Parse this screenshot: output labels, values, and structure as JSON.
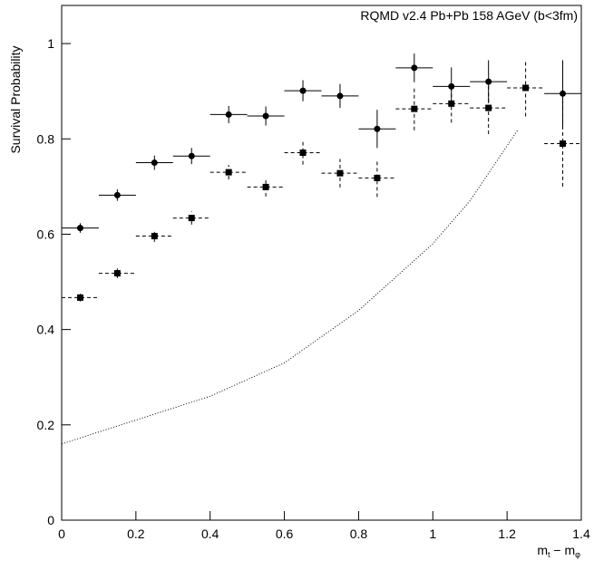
{
  "chart_data": {
    "type": "errorbar",
    "title": "RQMD v2.4 Pb+Pb 158 AGeV (b<3fm)",
    "y_label": "Survival Probability",
    "x_label": [
      "m",
      "t",
      " − m",
      "φ"
    ],
    "xlim": [
      0,
      1.4
    ],
    "ylim": [
      0,
      1.08
    ],
    "xticks": [
      0,
      0.2,
      0.4,
      0.6,
      0.8,
      1,
      1.2,
      1.4
    ],
    "yticks": [
      0,
      0.2,
      0.4,
      0.6,
      0.8,
      1
    ],
    "series": [
      {
        "marker": "circle",
        "line": "solid",
        "color": "#000000",
        "xerr": 0.05,
        "x": [
          0.05,
          0.15,
          0.25,
          0.35,
          0.45,
          0.55,
          0.65,
          0.75,
          0.85,
          0.95,
          1.05,
          1.15,
          1.25,
          1.35
        ],
        "values": [
          0.613,
          0.682,
          0.75,
          0.764,
          0.851,
          0.848,
          0.901,
          0.89,
          0.821,
          0.949,
          0.91,
          0.92,
          null,
          0.895
        ],
        "yerr": [
          0.01,
          0.012,
          0.015,
          0.017,
          0.018,
          0.02,
          0.022,
          0.025,
          0.04,
          0.03,
          0.04,
          0.045,
          null,
          0.07
        ]
      },
      {
        "marker": "square",
        "line": "dashed",
        "color": "#000000",
        "xerr": 0.05,
        "x": [
          0.05,
          0.15,
          0.25,
          0.35,
          0.45,
          0.55,
          0.65,
          0.75,
          0.85,
          0.95,
          1.05,
          1.15,
          1.25,
          1.35
        ],
        "values": [
          0.467,
          0.518,
          0.596,
          0.634,
          0.73,
          0.699,
          0.771,
          0.728,
          0.718,
          0.863,
          0.874,
          0.865,
          0.907,
          0.79
        ],
        "yerr": [
          0.008,
          0.01,
          0.012,
          0.014,
          0.015,
          0.02,
          0.025,
          0.03,
          0.04,
          0.045,
          0.04,
          0.055,
          0.06,
          0.09
        ]
      },
      {
        "marker": "none",
        "line": "dotted",
        "color": "#000000",
        "x": [
          0,
          0.2,
          0.4,
          0.6,
          0.8,
          1.0,
          1.1,
          1.23
        ],
        "values": [
          0.16,
          0.21,
          0.26,
          0.33,
          0.44,
          0.58,
          0.67,
          0.82
        ]
      }
    ]
  }
}
